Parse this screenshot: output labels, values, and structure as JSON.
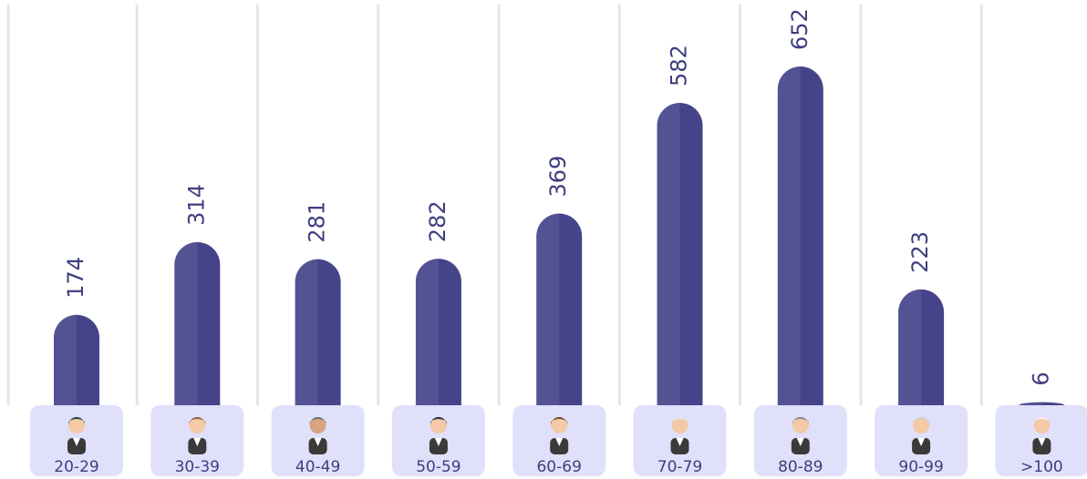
{
  "chart_data": {
    "type": "bar",
    "categories": [
      "20-29",
      "30-39",
      "40-49",
      "50-59",
      "60-69",
      "70-79",
      "80-89",
      "90-99",
      ">100"
    ],
    "values": [
      174,
      314,
      281,
      282,
      369,
      582,
      652,
      223,
      6
    ],
    "color": "#45448a"
  }
}
